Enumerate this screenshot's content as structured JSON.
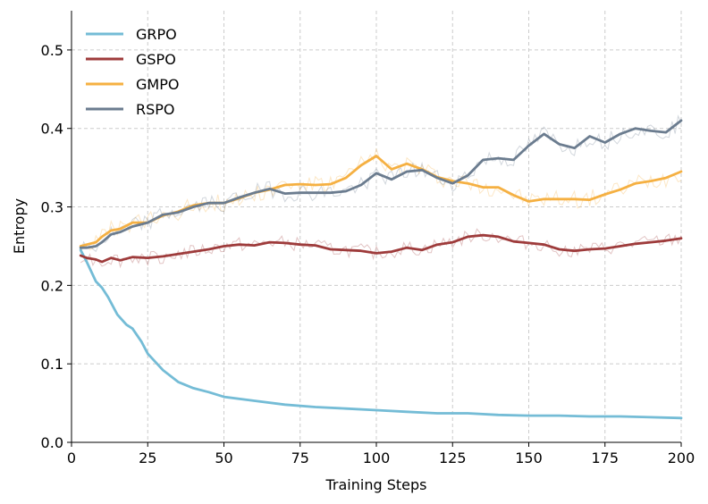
{
  "chart_data": {
    "type": "line",
    "title": "",
    "xlabel": "Training Steps",
    "ylabel": "Entropy",
    "xlim": [
      0,
      200
    ],
    "ylim": [
      0,
      0.55
    ],
    "xticks": [
      0,
      25,
      50,
      75,
      100,
      125,
      150,
      175,
      200
    ],
    "yticks": [
      0.0,
      0.1,
      0.2,
      0.3,
      0.4,
      0.5
    ],
    "xtick_labels": [
      "0",
      "25",
      "50",
      "75",
      "100",
      "125",
      "150",
      "175",
      "200"
    ],
    "ytick_labels": [
      "0.0",
      "0.1",
      "0.2",
      "0.3",
      "0.4",
      "0.5"
    ],
    "grid": true,
    "legend_position": "top-left",
    "series": [
      {
        "name": "GRPO",
        "color": "#74bcd6",
        "x": [
          3,
          5,
          8,
          10,
          12,
          15,
          18,
          20,
          23,
          25,
          30,
          35,
          40,
          45,
          50,
          60,
          70,
          80,
          90,
          100,
          110,
          120,
          130,
          140,
          150,
          160,
          170,
          180,
          190,
          200
        ],
        "values": [
          0.245,
          0.23,
          0.205,
          0.197,
          0.185,
          0.163,
          0.15,
          0.145,
          0.128,
          0.113,
          0.092,
          0.077,
          0.069,
          0.064,
          0.058,
          0.053,
          0.048,
          0.045,
          0.043,
          0.041,
          0.039,
          0.037,
          0.037,
          0.035,
          0.034,
          0.034,
          0.033,
          0.033,
          0.032,
          0.031
        ]
      },
      {
        "name": "GSPO",
        "color": "#9e3b3b",
        "x": [
          3,
          5,
          8,
          10,
          13,
          16,
          20,
          25,
          30,
          35,
          40,
          45,
          50,
          55,
          60,
          65,
          70,
          75,
          80,
          85,
          90,
          95,
          100,
          105,
          110,
          115,
          120,
          125,
          130,
          135,
          140,
          145,
          150,
          155,
          160,
          165,
          170,
          175,
          180,
          185,
          190,
          195,
          200
        ],
        "values": [
          0.238,
          0.235,
          0.233,
          0.23,
          0.235,
          0.232,
          0.236,
          0.235,
          0.237,
          0.24,
          0.243,
          0.246,
          0.25,
          0.252,
          0.251,
          0.255,
          0.254,
          0.252,
          0.251,
          0.246,
          0.245,
          0.244,
          0.241,
          0.243,
          0.248,
          0.245,
          0.252,
          0.255,
          0.262,
          0.264,
          0.262,
          0.256,
          0.254,
          0.252,
          0.246,
          0.244,
          0.246,
          0.247,
          0.25,
          0.253,
          0.255,
          0.257,
          0.26
        ]
      },
      {
        "name": "GMPO",
        "color": "#f5b042",
        "x": [
          3,
          5,
          8,
          10,
          13,
          16,
          20,
          25,
          30,
          35,
          40,
          45,
          50,
          55,
          60,
          65,
          70,
          75,
          80,
          85,
          90,
          95,
          100,
          105,
          110,
          115,
          120,
          125,
          130,
          135,
          140,
          145,
          150,
          155,
          160,
          165,
          170,
          175,
          180,
          185,
          190,
          195,
          200
        ],
        "values": [
          0.25,
          0.252,
          0.255,
          0.262,
          0.27,
          0.272,
          0.28,
          0.28,
          0.289,
          0.294,
          0.302,
          0.305,
          0.305,
          0.311,
          0.318,
          0.322,
          0.328,
          0.329,
          0.328,
          0.329,
          0.337,
          0.353,
          0.365,
          0.348,
          0.355,
          0.348,
          0.338,
          0.333,
          0.33,
          0.325,
          0.325,
          0.315,
          0.307,
          0.31,
          0.31,
          0.31,
          0.309,
          0.316,
          0.322,
          0.33,
          0.333,
          0.337,
          0.345
        ]
      },
      {
        "name": "RSPO",
        "color": "#6b7c8f",
        "x": [
          3,
          5,
          8,
          10,
          13,
          16,
          20,
          25,
          30,
          35,
          40,
          45,
          50,
          55,
          60,
          65,
          70,
          75,
          80,
          85,
          90,
          95,
          100,
          105,
          110,
          115,
          120,
          125,
          130,
          135,
          140,
          145,
          150,
          155,
          160,
          165,
          170,
          175,
          180,
          185,
          190,
          195,
          200
        ],
        "values": [
          0.248,
          0.248,
          0.25,
          0.255,
          0.265,
          0.268,
          0.275,
          0.28,
          0.29,
          0.293,
          0.3,
          0.305,
          0.305,
          0.312,
          0.318,
          0.323,
          0.317,
          0.318,
          0.318,
          0.318,
          0.32,
          0.328,
          0.343,
          0.335,
          0.345,
          0.347,
          0.337,
          0.33,
          0.34,
          0.36,
          0.362,
          0.36,
          0.378,
          0.393,
          0.38,
          0.375,
          0.39,
          0.382,
          0.393,
          0.4,
          0.397,
          0.395,
          0.41
        ]
      }
    ]
  }
}
